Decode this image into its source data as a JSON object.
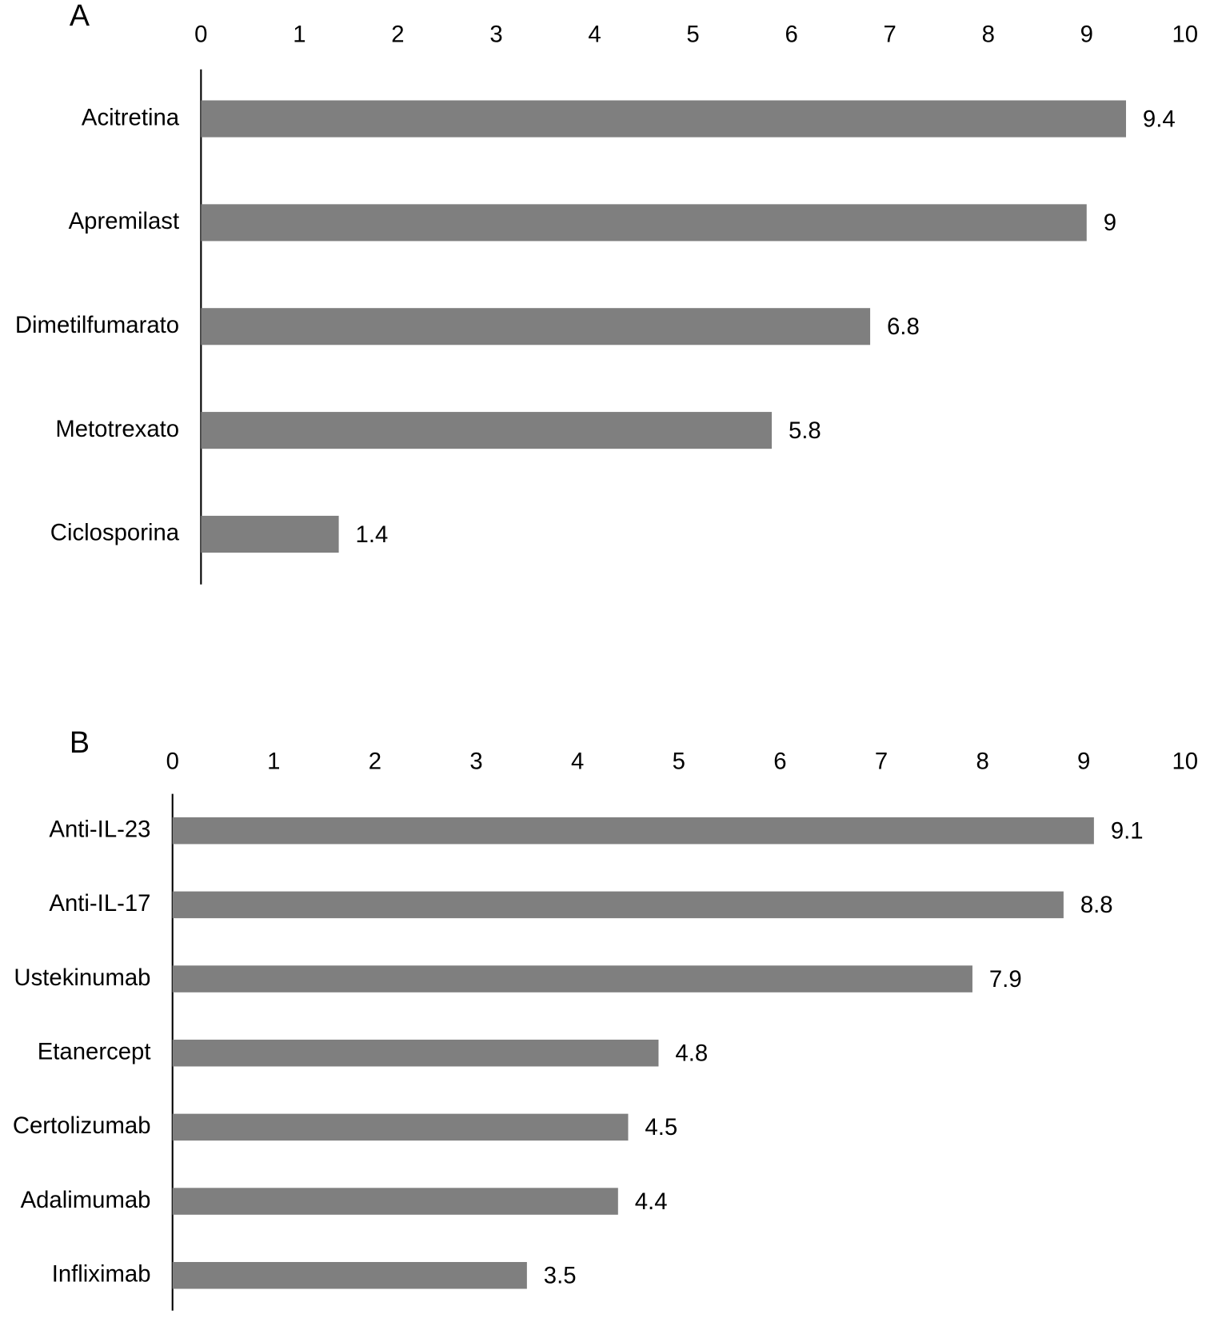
{
  "chart_data": [
    {
      "type": "bar",
      "orientation": "horizontal",
      "title": "A",
      "categories": [
        "Acitretina",
        "Apremilast",
        "Dimetilfumarato",
        "Metotrexato",
        "Ciclosporina"
      ],
      "values": [
        9.4,
        9,
        6.8,
        5.8,
        1.4
      ],
      "color": "#7f7f7f",
      "xlim": [
        0,
        10
      ],
      "xticks": [
        0,
        1,
        2,
        3,
        4,
        5,
        6,
        7,
        8,
        9,
        10
      ],
      "grid": false
    },
    {
      "type": "bar",
      "orientation": "horizontal",
      "title": "B",
      "categories": [
        "Anti-IL-23",
        "Anti-IL-17",
        "Ustekinumab",
        "Etanercept",
        "Certolizumab",
        "Adalimumab",
        "Infliximab"
      ],
      "values": [
        9.1,
        8.8,
        7.9,
        4.8,
        4.5,
        4.4,
        3.5
      ],
      "color": "#7f7f7f",
      "xlim": [
        0,
        10
      ],
      "xticks": [
        0,
        1,
        2,
        3,
        4,
        5,
        6,
        7,
        8,
        9,
        10
      ],
      "grid": false
    }
  ]
}
